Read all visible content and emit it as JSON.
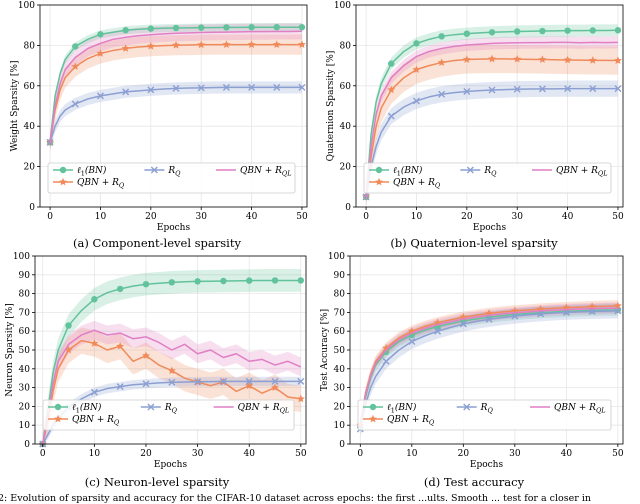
{
  "chart_data": [
    {
      "type": "line",
      "id": "a",
      "title": "",
      "xlabel": "Epochs",
      "ylabel": "Weight Sparsity [%]",
      "xlim": [
        -2,
        51
      ],
      "ylim": [
        0,
        100
      ],
      "xticks": [
        0,
        10,
        20,
        30,
        40,
        50
      ],
      "yticks": [
        0,
        20,
        40,
        60,
        80,
        100
      ],
      "legend_loc": "lower",
      "x": [
        0,
        1,
        2,
        3,
        5,
        7.5,
        10,
        12.5,
        15,
        17.5,
        20,
        22.5,
        25,
        27.5,
        30,
        32.5,
        35,
        37.5,
        40,
        42.5,
        45,
        47.5,
        50
      ],
      "series": [
        {
          "name": "ℓ1(BN)",
          "values": [
            32,
            55,
            66,
            73,
            79.5,
            83,
            85.5,
            86.5,
            87.5,
            88,
            88.3,
            88.5,
            88.6,
            88.7,
            88.8,
            88.8,
            88.9,
            88.9,
            89,
            89,
            89,
            89,
            89
          ],
          "band": 2,
          "markers": [
            0,
            4,
            6,
            8,
            10,
            12,
            14,
            16,
            18,
            20,
            22
          ]
        },
        {
          "name": "QBN + R_Q",
          "values": [
            32,
            48,
            58,
            64,
            69.5,
            73.5,
            76,
            77.5,
            78.5,
            79.2,
            79.6,
            79.9,
            80.1,
            80.2,
            80.3,
            80.4,
            80.4,
            80.4,
            80.4,
            80.4,
            80.4,
            80.4,
            80.4
          ],
          "band": 5,
          "markers": [
            0,
            4,
            6,
            8,
            10,
            12,
            14,
            16,
            18,
            20,
            22
          ]
        },
        {
          "name": "R_Q",
          "values": [
            32,
            40,
            45,
            48,
            51,
            53.5,
            55,
            56,
            57,
            57.5,
            58,
            58.4,
            58.7,
            58.9,
            59,
            59.1,
            59.2,
            59.2,
            59.2,
            59.2,
            59.2,
            59.2,
            59.2
          ],
          "band": 3,
          "markers": [
            0,
            4,
            6,
            8,
            10,
            12,
            14,
            16,
            18,
            20,
            22
          ]
        },
        {
          "name": "QBN + R_QL",
          "values": [
            32,
            50,
            61,
            68,
            74,
            78.5,
            81,
            83,
            84,
            84.8,
            85.3,
            85.7,
            86,
            86.2,
            86.4,
            86.5,
            86.6,
            86.7,
            86.8,
            86.8,
            86.9,
            86.9,
            87
          ],
          "band": 4,
          "markers": []
        }
      ]
    },
    {
      "type": "line",
      "id": "b",
      "title": "",
      "xlabel": "Epochs",
      "ylabel": "Quaternion Sparsity [%]",
      "xlim": [
        -2,
        51
      ],
      "ylim": [
        0,
        100
      ],
      "xticks": [
        0,
        10,
        20,
        30,
        40,
        50
      ],
      "yticks": [
        0,
        20,
        40,
        60,
        80,
        100
      ],
      "legend_loc": "lower",
      "x": [
        0,
        1,
        2,
        3,
        5,
        7.5,
        10,
        12.5,
        15,
        17.5,
        20,
        22.5,
        25,
        27.5,
        30,
        32.5,
        35,
        37.5,
        40,
        42.5,
        45,
        47.5,
        50
      ],
      "series": [
        {
          "name": "ℓ1(BN)",
          "values": [
            5,
            36,
            52,
            61,
            71,
            77,
            81,
            83,
            84.5,
            85.3,
            85.8,
            86.2,
            86.5,
            86.7,
            86.9,
            87,
            87.1,
            87.2,
            87.3,
            87.3,
            87.4,
            87.4,
            87.5
          ],
          "band": 3,
          "markers": [
            0,
            4,
            6,
            8,
            10,
            12,
            14,
            16,
            18,
            20,
            22
          ]
        },
        {
          "name": "QBN + R_Q",
          "values": [
            5,
            25,
            40,
            49,
            58,
            64,
            68,
            70,
            71.5,
            72.5,
            73,
            73.2,
            73.3,
            73.3,
            73.2,
            73.1,
            73,
            72.9,
            72.8,
            72.7,
            72.6,
            72.6,
            72.5
          ],
          "band": 7,
          "markers": [
            0,
            4,
            6,
            8,
            10,
            12,
            14,
            16,
            18,
            20,
            22
          ]
        },
        {
          "name": "R_Q",
          "values": [
            5,
            20,
            30,
            37,
            45,
            49.5,
            52.5,
            54.5,
            55.8,
            56.6,
            57.2,
            57.6,
            57.9,
            58.1,
            58.3,
            58.4,
            58.5,
            58.5,
            58.6,
            58.6,
            58.6,
            58.6,
            58.6
          ],
          "band": 4,
          "markers": [
            0,
            4,
            6,
            8,
            10,
            12,
            14,
            16,
            18,
            20,
            22
          ]
        },
        {
          "name": "QBN + R_QL",
          "values": [
            5,
            30,
            46,
            55,
            64,
            70,
            74.5,
            77,
            78.5,
            79.5,
            80.2,
            80.6,
            81,
            81.2,
            81.3,
            81.4,
            81.4,
            81.5,
            81.5,
            81.3,
            81.5,
            81.4,
            81.5
          ],
          "band": 3,
          "markers": []
        }
      ]
    },
    {
      "type": "line",
      "id": "c",
      "title": "",
      "xlabel": "Epochs",
      "ylabel": "Neuron Sparsity [%]",
      "xlim": [
        -1.5,
        51
      ],
      "ylim": [
        0,
        100
      ],
      "xticks": [
        0,
        10,
        20,
        30,
        40,
        50
      ],
      "yticks": [
        0,
        10,
        20,
        30,
        40,
        50,
        60,
        70,
        80,
        90,
        100
      ],
      "legend_loc": "lower",
      "x": [
        0,
        1,
        2,
        3,
        5,
        7.5,
        10,
        12.5,
        15,
        17.5,
        20,
        22.5,
        25,
        27.5,
        30,
        32.5,
        35,
        37.5,
        40,
        42.5,
        45,
        47.5,
        50
      ],
      "series": [
        {
          "name": "ℓ1(BN)",
          "values": [
            0,
            18,
            38,
            50,
            63,
            71,
            77,
            80.5,
            82.5,
            84,
            85,
            85.5,
            86,
            86.3,
            86.5,
            86.6,
            86.7,
            86.8,
            86.9,
            87,
            87,
            87,
            87
          ],
          "band": 6,
          "markers": [
            0,
            4,
            6,
            8,
            10,
            12,
            14,
            16,
            18,
            20,
            22
          ]
        },
        {
          "name": "QBN + R_Q",
          "values": [
            0,
            12,
            28,
            40,
            50,
            55,
            53.5,
            50,
            52,
            44,
            47,
            42,
            39,
            35,
            33,
            31,
            33,
            28,
            31,
            27,
            30,
            25,
            24
          ],
          "band": 7,
          "markers": [
            0,
            4,
            6,
            8,
            10,
            12,
            14,
            16,
            18,
            20,
            22
          ]
        },
        {
          "name": "R_Q",
          "values": [
            0,
            5,
            10,
            14,
            19.5,
            24,
            27.5,
            29.5,
            30.5,
            31.5,
            32,
            32.5,
            32.8,
            33,
            33.1,
            33.2,
            33.3,
            33.3,
            33.3,
            33.3,
            33.3,
            33.3,
            33.3
          ],
          "band": 2.5,
          "markers": [
            0,
            4,
            6,
            8,
            10,
            12,
            14,
            16,
            18,
            20,
            22
          ]
        },
        {
          "name": "QBN + R_QL",
          "values": [
            0,
            15,
            32,
            44,
            53,
            58,
            60.5,
            58,
            59,
            56,
            57,
            54,
            50,
            53,
            48,
            50,
            46,
            48,
            44,
            45,
            42,
            44,
            41
          ],
          "band": 5,
          "markers": []
        }
      ]
    },
    {
      "type": "line",
      "id": "d",
      "title": "",
      "xlabel": "Epochs",
      "ylabel": "Test Accuracy [%]",
      "xlim": [
        -2,
        51
      ],
      "ylim": [
        0,
        100
      ],
      "xticks": [
        0,
        10,
        20,
        30,
        40,
        50
      ],
      "yticks": [
        0,
        10,
        20,
        30,
        40,
        50,
        60,
        70,
        80,
        90,
        100
      ],
      "legend_loc": "lower",
      "x": [
        0,
        1,
        2,
        3,
        5,
        7.5,
        10,
        12.5,
        15,
        17.5,
        20,
        22.5,
        25,
        27.5,
        30,
        32.5,
        35,
        37.5,
        40,
        42.5,
        45,
        47.5,
        50
      ],
      "series": [
        {
          "name": "ℓ1(BN)",
          "values": [
            9,
            25,
            35,
            42,
            49,
            54.5,
            58,
            60.5,
            62.5,
            64,
            65.5,
            66.5,
            67.5,
            68.2,
            68.9,
            69.4,
            69.8,
            70.2,
            70.5,
            70.8,
            71,
            71.2,
            71.3
          ],
          "band": 3,
          "markers": [
            0,
            4,
            6,
            8,
            10,
            12,
            14,
            16,
            18,
            20,
            22
          ]
        },
        {
          "name": "QBN + R_Q",
          "values": [
            10,
            27,
            37,
            44,
            51,
            56.5,
            60,
            62.5,
            64.5,
            66,
            67.5,
            68.5,
            69.5,
            70.2,
            70.8,
            71.3,
            71.8,
            72.2,
            72.5,
            72.8,
            73.1,
            73.3,
            73.5
          ],
          "band": 3,
          "markers": [
            0,
            4,
            6,
            8,
            10,
            12,
            14,
            16,
            18,
            20,
            22
          ]
        },
        {
          "name": "R_Q",
          "values": [
            8,
            21,
            30,
            36,
            44,
            50,
            54.5,
            57.5,
            60,
            62,
            63.8,
            65.2,
            66.3,
            67.2,
            68,
            68.7,
            69.2,
            69.7,
            70,
            70.3,
            70.5,
            70.7,
            70.8
          ],
          "band": 4,
          "markers": [
            0,
            4,
            6,
            8,
            10,
            12,
            14,
            16,
            18,
            20,
            22
          ]
        },
        {
          "name": "QBN + R_QL",
          "values": [
            9,
            26,
            36,
            43,
            50,
            55.5,
            59,
            61.5,
            63.5,
            65,
            66.5,
            67.5,
            68.5,
            69.2,
            69.8,
            70.3,
            70.8,
            71.2,
            71.5,
            71.8,
            72,
            72.2,
            72.3
          ],
          "band": 3,
          "markers": []
        }
      ]
    }
  ],
  "styles": {
    "colors": [
      "#62c29b",
      "#f08a5a",
      "#8b9fd2",
      "#e07fc4"
    ],
    "markers": [
      "circle",
      "star",
      "x",
      "none"
    ]
  },
  "legend": {
    "label_prefix": [
      "ℓ",
      "1",
      "(BN)"
    ],
    "qbn": "QBN",
    "plus": " + ",
    "r": "R",
    "sub_q": "Q",
    "sub_ql": "QL"
  },
  "captions": {
    "a": "(a) Component-level sparsity",
    "b": "(b) Quaternion-level sparsity",
    "c": "(c) Neuron-level sparsity",
    "d": "(d) Test accuracy"
  },
  "footer": "2: Evolution of sparsity and accuracy for the CIFAR-10 dataset across epochs: the first ...ults. Smooth ... test for a closer in"
}
